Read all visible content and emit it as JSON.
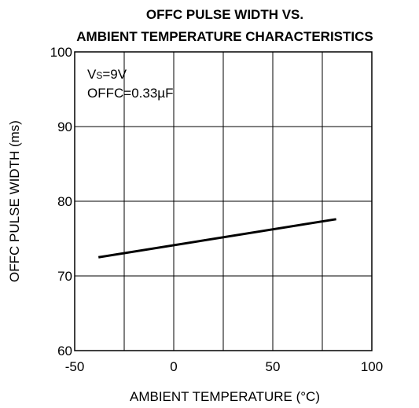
{
  "chart_data": {
    "type": "line",
    "title_lines": [
      "OFFC PULSE WIDTH VS.",
      "AMBIENT TEMPERATURE CHARACTERISTICS"
    ],
    "xlabel": "AMBIENT TEMPERATURE (°C)",
    "ylabel": "OFFC PULSE WIDTH (ms)",
    "xlim": [
      -50,
      100
    ],
    "ylim": [
      60,
      100
    ],
    "x_ticks": [
      -50,
      0,
      50,
      100
    ],
    "y_ticks": [
      60,
      70,
      80,
      90,
      100
    ],
    "x_gridlines": [
      -25,
      0,
      25,
      50,
      75
    ],
    "y_gridlines": [
      70,
      80,
      90
    ],
    "grid": true,
    "annotations": {
      "supply_main": "V",
      "supply_sub": "S",
      "supply_value": "=9V",
      "capacitor": "OFFC=0.33µF"
    },
    "series": [
      {
        "x": [
          -38,
          82
        ],
        "y": [
          72.5,
          77.6
        ],
        "color": "#000000"
      }
    ]
  }
}
